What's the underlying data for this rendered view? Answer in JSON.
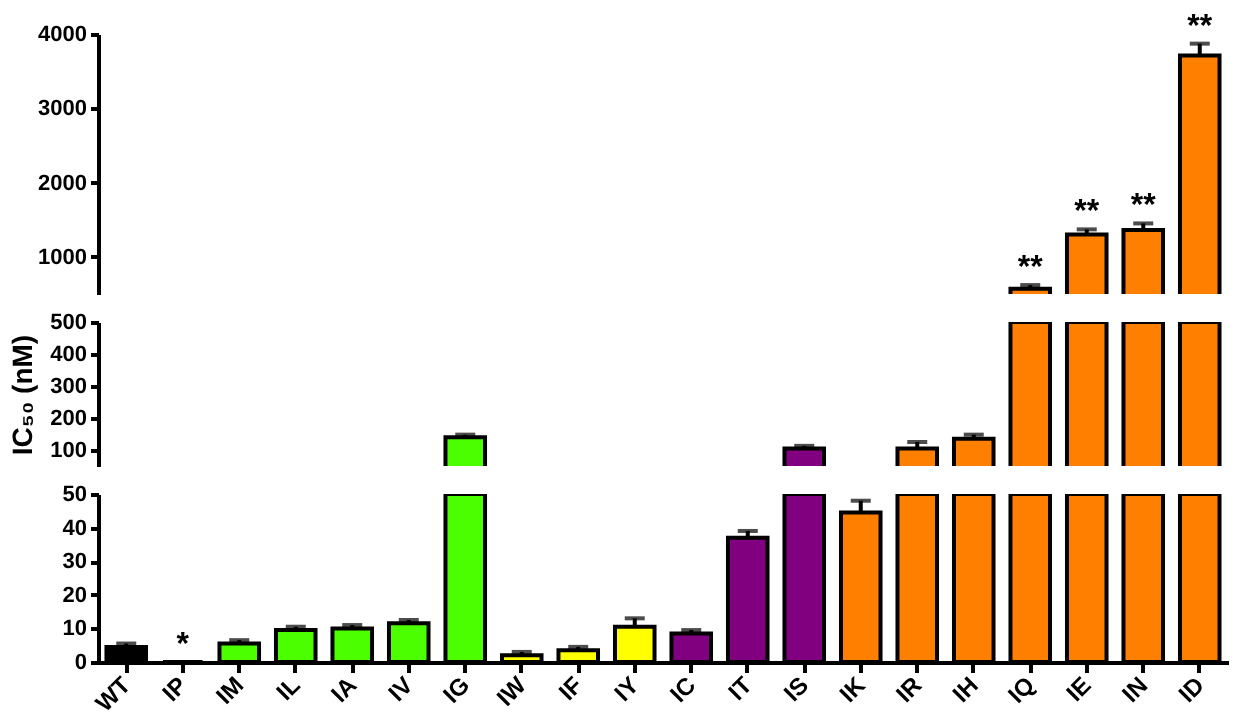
{
  "chart_data": [
    {
      "type": "bar",
      "categories": [
        "WT",
        "IP",
        "IM",
        "IL",
        "IA",
        "IV",
        "IG",
        "IW",
        "IF",
        "IY",
        "IC",
        "IT",
        "IS",
        "IK",
        "IR",
        "IH",
        "IQ",
        "IE",
        "IN",
        "ID"
      ],
      "values": [
        null,
        null,
        null,
        null,
        null,
        null,
        null,
        null,
        null,
        null,
        null,
        null,
        null,
        null,
        null,
        null,
        570,
        1300,
        1360,
        3710
      ],
      "errors": [
        null,
        null,
        null,
        null,
        null,
        null,
        null,
        null,
        null,
        null,
        null,
        null,
        null,
        null,
        null,
        null,
        [
          570,
          620
        ],
        [
          1300,
          1370
        ],
        [
          1360,
          1450
        ],
        [
          3710,
          3870
        ]
      ],
      "colors": [
        "#000000",
        "#4cff00",
        "#4cff00",
        "#4cff00",
        "#4cff00",
        "#4cff00",
        "#4cff00",
        "#ffff00",
        "#ffff00",
        "#ffff00",
        "#800080",
        "#800080",
        "#800080",
        "#ff8000",
        "#ff8000",
        "#ff8000",
        "#ff8000",
        "#ff8000",
        "#ff8000",
        "#ff8000"
      ],
      "ylim": [
        500,
        4000
      ],
      "yticks": [
        1000,
        2000,
        3000,
        4000
      ],
      "tick_labels": "y",
      "annotations": [
        {
          "text": "**",
          "x": "IQ",
          "y": 620
        },
        {
          "text": "**",
          "x": "IE",
          "y": 1370
        },
        {
          "text": "**",
          "x": "IN",
          "y": 1450
        },
        {
          "text": "**",
          "x": "ID",
          "y": 3870
        }
      ]
    },
    {
      "type": "bar",
      "ylabel": "IC₅₀ (nM)",
      "categories": [
        "WT",
        "IP",
        "IM",
        "IL",
        "IA",
        "IV",
        "IG",
        "IW",
        "IF",
        "IY",
        "IC",
        "IT",
        "IS",
        "IK",
        "IR",
        "IH",
        "IQ",
        "IE",
        "IN",
        "ID"
      ],
      "values": [
        null,
        null,
        null,
        null,
        null,
        null,
        140,
        null,
        null,
        null,
        null,
        null,
        105,
        null,
        105,
        135,
        500,
        500,
        500,
        500
      ],
      "errors": [
        null,
        null,
        null,
        null,
        null,
        null,
        [
          140,
          148
        ],
        null,
        null,
        null,
        null,
        null,
        [
          105,
          113
        ],
        null,
        [
          105,
          125
        ],
        [
          135,
          148
        ],
        null,
        null,
        null,
        null
      ],
      "colors": [
        "#000000",
        "#4cff00",
        "#4cff00",
        "#4cff00",
        "#4cff00",
        "#4cff00",
        "#4cff00",
        "#ffff00",
        "#ffff00",
        "#ffff00",
        "#800080",
        "#800080",
        "#800080",
        "#ff8000",
        "#ff8000",
        "#ff8000",
        "#ff8000",
        "#ff8000",
        "#ff8000",
        "#ff8000"
      ],
      "ylim": [
        50,
        500
      ],
      "yticks": [
        100,
        200,
        300,
        400,
        500
      ],
      "tick_labels": "y"
    },
    {
      "type": "bar",
      "categories": [
        "WT",
        "IP",
        "IM",
        "IL",
        "IA",
        "IV",
        "IG",
        "IW",
        "IF",
        "IY",
        "IC",
        "IT",
        "IS",
        "IK",
        "IR",
        "IH",
        "IQ",
        "IE",
        "IN",
        "ID"
      ],
      "values": [
        4.5,
        0,
        5.5,
        9.5,
        10,
        11.5,
        50,
        2,
        3.5,
        10.5,
        8.5,
        37,
        50,
        44.5,
        50,
        50,
        50,
        50,
        50,
        50
      ],
      "errors": [
        [
          4.5,
          5.5
        ],
        null,
        [
          5.5,
          6.5
        ],
        [
          9.5,
          10.5
        ],
        [
          10,
          11
        ],
        [
          11.5,
          12.5
        ],
        null,
        [
          2,
          3
        ],
        [
          3.5,
          4.5
        ],
        [
          10.5,
          13
        ],
        [
          8.5,
          9.5
        ],
        [
          37,
          39
        ],
        null,
        [
          44.5,
          48
        ],
        null,
        null,
        null,
        null,
        null,
        null
      ],
      "colors": [
        "#000000",
        "#4cff00",
        "#4cff00",
        "#4cff00",
        "#4cff00",
        "#4cff00",
        "#4cff00",
        "#ffff00",
        "#ffff00",
        "#ffff00",
        "#800080",
        "#800080",
        "#800080",
        "#ff8000",
        "#ff8000",
        "#ff8000",
        "#ff8000",
        "#ff8000",
        "#ff8000",
        "#ff8000"
      ],
      "ylim": [
        0,
        50
      ],
      "yticks": [
        0,
        10,
        20,
        30,
        40,
        50
      ],
      "annotations": [
        {
          "text": "*",
          "x": "IP",
          "y": 0
        }
      ]
    }
  ]
}
